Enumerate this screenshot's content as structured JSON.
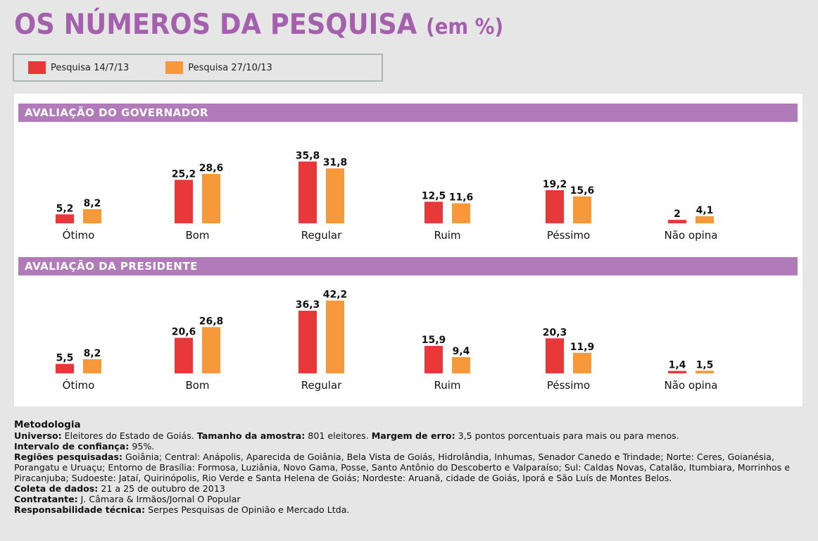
{
  "title": {
    "main": "OS NÚMEROS DA PESQUISA",
    "unit": "(em %)"
  },
  "colors": {
    "title": "#a460ad",
    "header": "#b17ab9",
    "series1": "#e8383a",
    "series2": "#f7993a"
  },
  "legend": [
    {
      "label": "Pesquisa 14/7/13",
      "color": "#e8383a"
    },
    {
      "label": "Pesquisa 27/10/13",
      "color": "#f7993a"
    }
  ],
  "chart_data": [
    {
      "type": "bar",
      "title": "AVALIAÇÃO DO GOVERNADOR",
      "categories": [
        "Ótimo",
        "Bom",
        "Regular",
        "Ruim",
        "Péssimo",
        "Não opina"
      ],
      "series": [
        {
          "name": "Pesquisa 14/7/13",
          "values": [
            5.2,
            25.2,
            35.8,
            12.5,
            19.2,
            2
          ]
        },
        {
          "name": "Pesquisa 27/10/13",
          "values": [
            8.2,
            28.6,
            31.8,
            11.6,
            15.6,
            4.1
          ]
        }
      ],
      "labels": [
        [
          "5,2",
          "25,2",
          "35,8",
          "12,5",
          "19,2",
          "2"
        ],
        [
          "8,2",
          "28,6",
          "31,8",
          "11,6",
          "15,6",
          "4,1"
        ]
      ]
    },
    {
      "type": "bar",
      "title": "AVALIAÇÃO DA PRESIDENTE",
      "categories": [
        "Ótimo",
        "Bom",
        "Regular",
        "Ruim",
        "Péssimo",
        "Não opina"
      ],
      "series": [
        {
          "name": "Pesquisa 14/7/13",
          "values": [
            5.5,
            20.6,
            36.3,
            15.9,
            20.3,
            1.4
          ]
        },
        {
          "name": "Pesquisa 27/10/13",
          "values": [
            8.2,
            26.8,
            42.2,
            9.4,
            11.9,
            1.5
          ]
        }
      ],
      "labels": [
        [
          "5,5",
          "20,6",
          "36,3",
          "15,9",
          "20,3",
          "1,4"
        ],
        [
          "8,2",
          "26,8",
          "42,2",
          "9,4",
          "11,9",
          "1,5"
        ]
      ]
    }
  ],
  "methodology": {
    "title": "Metodologia",
    "items": [
      {
        "label": "Universo:",
        "text": " Eleitores do Estado de Goiás. "
      },
      {
        "label": "Tamanho da amostra:",
        "text": " 801 eleitores. "
      },
      {
        "label": "Margem de erro:",
        "text": " 3,5 pontos porcentuais para mais ou para menos.",
        "br": true
      },
      {
        "label": "Intervalo de confiança:",
        "text": " 95%.",
        "br": true
      },
      {
        "label": "Regiões pesquisadas:",
        "text": " Goiânia; Central: Anápolis, Aparecida de Goiânia, Bela Vista de Goiás, Hidrolândia, Inhumas, Senador Canedo e Trindade; Norte: Ceres, Goianésia, Porangatu e Uruaçu; Entorno de Brasília: Formosa, Luziânia, Novo Gama, Posse, Santo Antônio do Descoberto e Valparaíso; Sul: Caldas Novas, Catalão, Itumbiara, Morrinhos e Piracanjuba; Sudoeste: Jataí, Quirinópolis, Rio Verde e Santa Helena de Goiás; Nordeste: Aruanã, cidade de Goiás, Iporá e São Luís de Montes Belos.",
        "br": true
      },
      {
        "label": "Coleta de dados:",
        "text": " 21 a 25 de outubro de 2013",
        "br": true
      },
      {
        "label": "Contratante:",
        "text": " J. Câmara & Irmãos/Jornal O Popular",
        "br": true
      },
      {
        "label": "Responsabilidade técnica:",
        "text": " Serpes Pesquisas de Opinião e Mercado Ltda.",
        "br": true
      }
    ]
  }
}
